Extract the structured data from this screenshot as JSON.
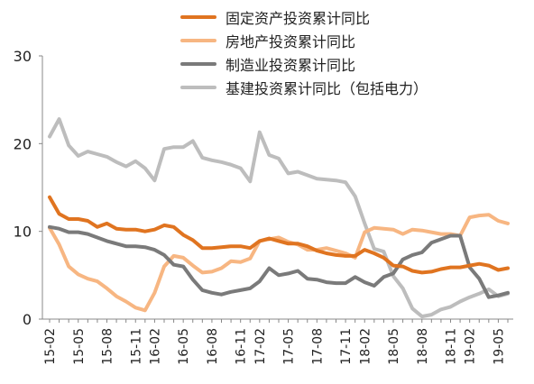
{
  "chart_data": {
    "type": "line",
    "title": "",
    "xlabel": "",
    "ylabel": "",
    "ylim": [
      0,
      30
    ],
    "yticks": [
      0,
      10,
      20,
      30
    ],
    "grid": false,
    "legend_position": "top-right",
    "x": [
      "15-02",
      "15-03",
      "15-04",
      "15-05",
      "15-06",
      "15-07",
      "15-08",
      "15-09",
      "15-10",
      "15-11",
      "15-12",
      "16-02",
      "16-03",
      "16-04",
      "16-05",
      "16-06",
      "16-07",
      "16-08",
      "16-09",
      "16-10",
      "16-11",
      "16-12",
      "17-02",
      "17-03",
      "17-04",
      "17-05",
      "17-06",
      "17-07",
      "17-08",
      "17-09",
      "17-10",
      "17-11",
      "17-12",
      "18-02",
      "18-03",
      "18-04",
      "18-05",
      "18-06",
      "18-07",
      "18-08",
      "18-09",
      "18-10",
      "18-11",
      "18-12",
      "19-02",
      "19-03",
      "19-04",
      "19-05",
      "19-06"
    ],
    "x_tick_labels": [
      "15-02",
      "15-05",
      "15-08",
      "15-11",
      "16-02",
      "16-05",
      "16-08",
      "16-11",
      "17-02",
      "17-05",
      "17-08",
      "17-11",
      "18-02",
      "18-05",
      "18-08",
      "18-11",
      "19-02",
      "19-05"
    ],
    "series": [
      {
        "name": "固定资产投资累计同比",
        "color": "#E07420",
        "values": [
          13.9,
          12.0,
          11.4,
          11.4,
          11.2,
          10.5,
          10.9,
          10.3,
          10.2,
          10.2,
          10.0,
          10.2,
          10.7,
          10.5,
          9.6,
          9.0,
          8.1,
          8.1,
          8.2,
          8.3,
          8.3,
          8.1,
          8.9,
          9.2,
          8.9,
          8.6,
          8.6,
          8.3,
          7.8,
          7.5,
          7.3,
          7.2,
          7.2,
          7.9,
          7.5,
          7.0,
          6.1,
          6.0,
          5.5,
          5.3,
          5.4,
          5.7,
          5.9,
          5.9,
          6.1,
          6.3,
          6.1,
          5.6,
          5.8
        ]
      },
      {
        "name": "房地产投资累计同比",
        "color": "#F7B682",
        "values": [
          10.4,
          8.5,
          6.0,
          5.1,
          4.6,
          4.3,
          3.5,
          2.6,
          2.0,
          1.3,
          1.0,
          3.0,
          6.0,
          7.2,
          7.0,
          6.1,
          5.3,
          5.4,
          5.8,
          6.6,
          6.5,
          6.9,
          8.9,
          9.1,
          9.3,
          8.8,
          8.5,
          7.9,
          7.9,
          8.1,
          7.8,
          7.5,
          7.0,
          9.9,
          10.4,
          10.3,
          10.2,
          9.7,
          10.2,
          10.1,
          9.9,
          9.7,
          9.7,
          9.5,
          11.6,
          11.8,
          11.9,
          11.2,
          10.9
        ]
      },
      {
        "name": "制造业投资累计同比",
        "color": "#7A7A7A",
        "values": [
          10.5,
          10.3,
          9.9,
          9.9,
          9.7,
          9.3,
          8.9,
          8.6,
          8.3,
          8.3,
          8.2,
          7.9,
          7.3,
          6.2,
          6.0,
          4.5,
          3.3,
          3.0,
          2.8,
          3.1,
          3.3,
          3.5,
          4.3,
          5.8,
          5.0,
          5.2,
          5.5,
          4.6,
          4.5,
          4.2,
          4.1,
          4.1,
          4.8,
          4.2,
          3.8,
          4.8,
          5.2,
          6.8,
          7.3,
          7.6,
          8.7,
          9.1,
          9.5,
          9.5,
          5.9,
          4.6,
          2.5,
          2.7,
          3.0
        ]
      },
      {
        "name": "基建投资累计同比（包括电力）",
        "color": "#BDBDBD",
        "values": [
          20.8,
          22.8,
          19.8,
          18.6,
          19.1,
          18.8,
          18.5,
          17.9,
          17.4,
          18.0,
          17.2,
          15.8,
          19.4,
          19.6,
          19.6,
          20.3,
          18.4,
          18.1,
          17.9,
          17.6,
          17.2,
          15.7,
          21.3,
          18.7,
          18.3,
          16.6,
          16.8,
          16.4,
          16.0,
          15.9,
          15.8,
          15.6,
          14.0,
          10.9,
          8.0,
          7.7,
          4.9,
          3.5,
          1.2,
          0.3,
          0.5,
          1.1,
          1.4,
          2.0,
          2.5,
          2.9,
          3.4,
          2.6,
          2.9
        ]
      }
    ]
  }
}
